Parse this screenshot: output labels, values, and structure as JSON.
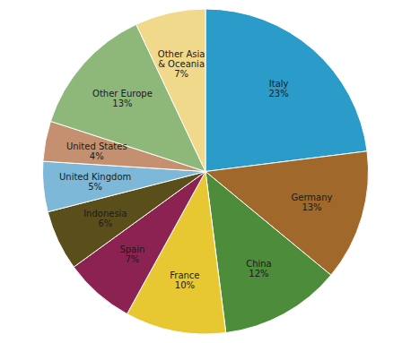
{
  "chart_data": {
    "type": "pie",
    "categories": [
      "Italy",
      "Germany",
      "China",
      "France",
      "Spain",
      "Indonesia",
      "United Kingdom",
      "United States",
      "Other Europe",
      "Other Asia\n& Oceania"
    ],
    "values": [
      23,
      13,
      12,
      10,
      7,
      6,
      5,
      4,
      13,
      7
    ],
    "value_labels": [
      "23%",
      "13%",
      "12%",
      "10%",
      "7%",
      "6%",
      "5%",
      "4%",
      "13%",
      "7%"
    ],
    "colors": [
      "#2B9CC9",
      "#A0682A",
      "#4D8C3A",
      "#E8C832",
      "#8B2252",
      "#5A4F1A",
      "#7EB8D8",
      "#C49070",
      "#8DB87A",
      "#F0D98A"
    ],
    "data_labels": true
  }
}
